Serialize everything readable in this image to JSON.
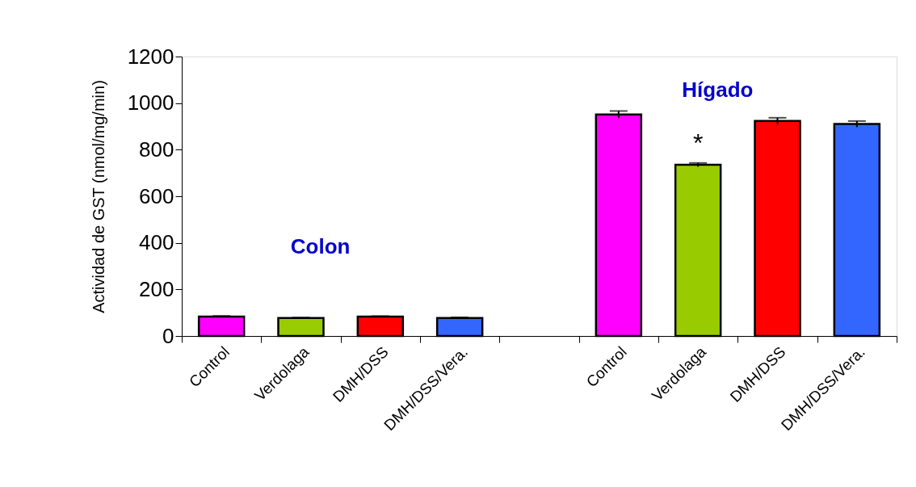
{
  "chart_data": {
    "type": "bar",
    "ylabel": "Actividad de GST (nmol/mg/min)",
    "categories": [
      "Control",
      "Verdolaga",
      "DMH/DSS",
      "DMH/DSS/Vera.",
      null,
      "Control",
      "Verdolaga",
      "DMH/DSS",
      "DMH/DSS/Vera."
    ],
    "values": [
      83,
      77,
      83,
      77,
      null,
      951,
      735,
      923,
      910
    ],
    "errors": [
      3,
      2,
      2,
      3,
      null,
      15,
      8,
      14,
      13
    ],
    "colors": [
      "#ff00ff",
      "#99cc00",
      "#ff0000",
      "#3366ff",
      null,
      "#ff00ff",
      "#99cc00",
      "#ff0000",
      "#3366ff"
    ],
    "ylim": [
      0,
      1200
    ],
    "yticks": [
      0,
      200,
      400,
      600,
      800,
      1000,
      1200
    ],
    "grid": false,
    "annotations": [
      "Colon",
      "Hígado",
      "*"
    ]
  }
}
